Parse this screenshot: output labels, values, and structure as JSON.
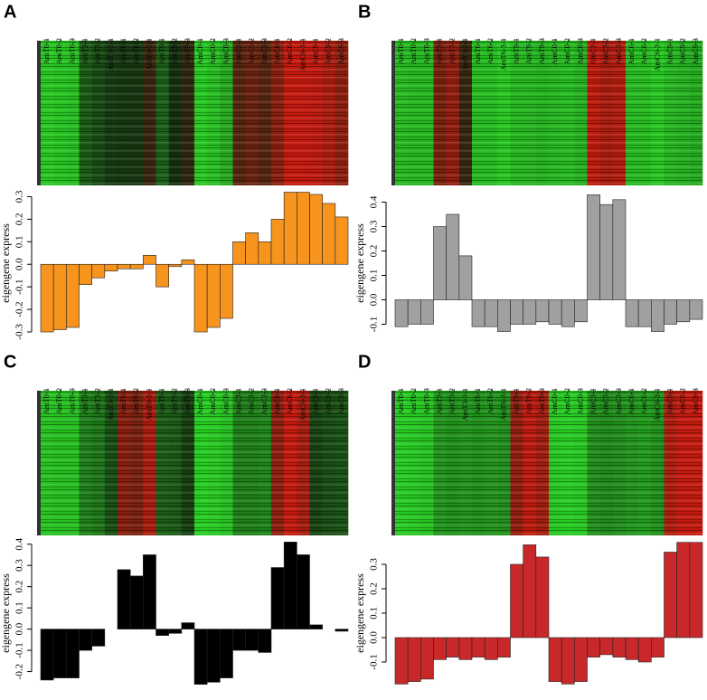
{
  "panels": [
    "A",
    "B",
    "C",
    "D"
  ],
  "chart_data": [
    {
      "type": "bar",
      "ylabel": "eigengene express",
      "color": "#f7941d",
      "categories": [
        "AmT0-1",
        "AmT0-2",
        "AmT0-3",
        "AmT3-1",
        "AmT3-2",
        "AmT3-3-1",
        "AmT6-1",
        "AmT6-2",
        "AmT6-3-1",
        "AmT9-1",
        "AmT9-2",
        "AmT9-3",
        "AmC0-1",
        "AmC0-2",
        "AmC0-3",
        "AmC3-1",
        "AmC3-2",
        "AmC3-3",
        "AmC6-1",
        "AmC6-2",
        "AmC6-3-1",
        "AmC9-1",
        "AmC9-2",
        "AmC9-3"
      ],
      "values": [
        -0.3,
        -0.29,
        -0.28,
        -0.09,
        -0.06,
        -0.03,
        -0.02,
        -0.02,
        0.04,
        -0.1,
        -0.01,
        0.02,
        -0.3,
        -0.28,
        -0.24,
        0.1,
        0.14,
        0.1,
        0.2,
        0.32,
        0.32,
        0.31,
        0.27,
        0.21
      ],
      "ylim": [
        -0.32,
        0.33
      ],
      "yticks": [
        -0.3,
        -0.2,
        -0.1,
        {
          "value": 0,
          "label": "0.0"
        },
        0.1,
        0.2,
        0.3
      ]
    },
    {
      "type": "bar",
      "ylabel": "eigengene express",
      "color": "#a0a0a0",
      "categories": [
        "AmT0-1",
        "AmT0-2",
        "AmT0-3",
        "AmT3-1",
        "AmT3-2",
        "AmT3-3-1",
        "AmT6-1",
        "AmT6-2",
        "AmT6-3-1",
        "AmT9-1",
        "AmT9-2",
        "AmT9-3",
        "AmC0-1",
        "AmC0-2",
        "AmC0-3",
        "AmC3-1",
        "AmC3-2",
        "AmC3-3",
        "AmC6-1",
        "AmC6-2",
        "AmC6-3-1",
        "AmC9-1",
        "AmC9-2",
        "AmC9-3"
      ],
      "values": [
        -0.11,
        -0.1,
        -0.1,
        0.3,
        0.35,
        0.18,
        -0.11,
        -0.11,
        -0.13,
        -0.1,
        -0.1,
        -0.09,
        -0.1,
        -0.11,
        -0.09,
        0.43,
        0.39,
        0.41,
        -0.11,
        -0.11,
        -0.13,
        -0.1,
        -0.09,
        -0.08
      ],
      "ylim": [
        -0.15,
        0.45
      ],
      "yticks": [
        -0.1,
        {
          "value": 0,
          "label": "0.0"
        },
        0.1,
        0.2,
        0.3,
        0.4
      ]
    },
    {
      "type": "bar",
      "ylabel": "eigengene express",
      "color": "#000000",
      "categories": [
        "AmT0-1",
        "AmT0-2",
        "AmT0-3",
        "AmT3-1",
        "AmT3-2",
        "AmT3-3-1",
        "AmT6-1",
        "AmT6-2",
        "AmT6-3-1",
        "AmT9-1",
        "AmT9-2",
        "AmT9-3",
        "AmC0-1",
        "AmC0-2",
        "AmC0-3",
        "AmC3-1",
        "AmC3-2",
        "AmC3-3",
        "AmC6-1",
        "AmC6-2",
        "AmC6-3-1",
        "AmC9-1",
        "AmC9-2",
        "AmC9-3"
      ],
      "values": [
        -0.24,
        -0.23,
        -0.23,
        -0.1,
        -0.08,
        0,
        0.28,
        0.25,
        0.35,
        -0.03,
        -0.02,
        0.03,
        -0.26,
        -0.25,
        -0.23,
        -0.1,
        -0.1,
        -0.11,
        0.29,
        0.41,
        0.35,
        0.02,
        0,
        -0.01
      ],
      "ylim": [
        -0.27,
        0.42
      ],
      "yticks": [
        -0.2,
        -0.1,
        {
          "value": 0,
          "label": "0.0"
        },
        0.1,
        0.2,
        0.3,
        0.4
      ]
    },
    {
      "type": "bar",
      "ylabel": "eigengene express",
      "color": "#c8282a",
      "categories": [
        "AmT0-1",
        "AmT0-2",
        "AmT0-3",
        "AmT3-1",
        "AmT3-2",
        "AmT3-3-1",
        "AmT6-1",
        "AmT6-2",
        "AmT6-3-1",
        "AmT9-1",
        "AmT9-2",
        "AmT9-3",
        "AmC0-1",
        "AmC0-2",
        "AmC0-3",
        "AmC3-1",
        "AmC3-2",
        "AmC3-3",
        "AmC6-1",
        "AmC6-2",
        "AmC6-3-1",
        "AmC9-1",
        "AmC9-2",
        "AmC9-3"
      ],
      "values": [
        -0.19,
        -0.18,
        -0.17,
        -0.09,
        -0.08,
        -0.09,
        -0.08,
        -0.09,
        -0.08,
        0.3,
        0.38,
        0.33,
        -0.18,
        -0.19,
        -0.18,
        -0.08,
        -0.07,
        -0.08,
        -0.09,
        -0.1,
        -0.08,
        0.35,
        0.39,
        0.39
      ],
      "ylim": [
        -0.2,
        0.4
      ],
      "yticks": [
        -0.1,
        {
          "value": 0,
          "label": "0.0"
        },
        0.1,
        0.2,
        0.3
      ]
    }
  ]
}
